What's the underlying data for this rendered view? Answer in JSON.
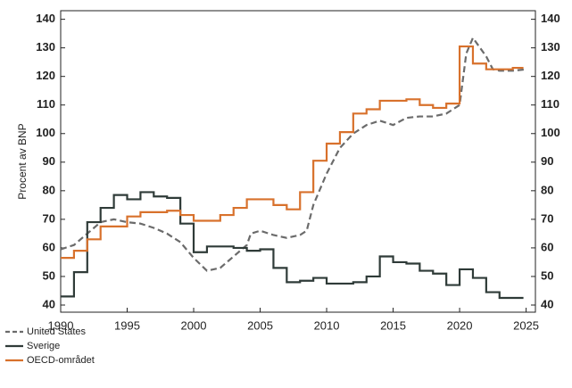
{
  "chart_data": {
    "type": "line",
    "y_label": "Procent av BNP",
    "xlim": [
      1990,
      2025.7
    ],
    "xticks": [
      1990,
      1995,
      2000,
      2005,
      2010,
      2015,
      2020,
      2025
    ],
    "ylim": [
      37.5,
      143
    ],
    "yticks": [
      40,
      50,
      60,
      70,
      80,
      90,
      100,
      110,
      120,
      130,
      140
    ],
    "right_axis_labels": true,
    "legend": "bottom-left",
    "series": [
      {
        "name": "United States",
        "color": "#6b6b6b",
        "dashed": true,
        "step": false,
        "x": [
          1990,
          1991,
          1992,
          1993,
          1994,
          1995,
          1996,
          1997,
          1998,
          1999,
          2000,
          2001,
          2002,
          2003,
          2004,
          2004.3,
          2005,
          2006,
          2007,
          2008,
          2008.5,
          2009,
          2010,
          2011,
          2012,
          2013,
          2014,
          2015,
          2016,
          2017,
          2018,
          2019,
          2020,
          2020.5,
          2021,
          2022,
          2022.5,
          2023,
          2024,
          2025
        ],
        "values": [
          59.5,
          61,
          65,
          69,
          70,
          69,
          68.5,
          67,
          65,
          62,
          56.5,
          52,
          53,
          57,
          61,
          65,
          66,
          64.5,
          63.5,
          64.5,
          66,
          75,
          86,
          95,
          100,
          103,
          104.5,
          103,
          105.5,
          106,
          106,
          107,
          110,
          128,
          133.5,
          127,
          122.5,
          122,
          122,
          122.5
        ]
      },
      {
        "name": "Sverige",
        "color": "#2f3b38",
        "dashed": false,
        "step": true,
        "x": [
          1990,
          1991,
          1992,
          1993,
          1994,
          1995,
          1996,
          1997,
          1998,
          1999,
          2000,
          2001,
          2002,
          2003,
          2004,
          2005,
          2006,
          2007,
          2008,
          2009,
          2010,
          2012,
          2013,
          2014,
          2015,
          2016,
          2017,
          2018,
          2019,
          2020,
          2021,
          2022,
          2023,
          2024,
          2024.8
        ],
        "values": [
          43,
          51.5,
          69,
          74,
          78.5,
          77,
          79.5,
          78,
          77.5,
          68.5,
          58.5,
          60.5,
          60.5,
          60,
          59,
          59.5,
          53,
          48,
          48.5,
          49.5,
          47.5,
          48,
          50,
          57,
          55,
          54.5,
          52,
          51,
          47,
          52.5,
          49.5,
          44.5,
          42.5,
          42.5,
          42.5
        ]
      },
      {
        "name": "OECD-området",
        "color": "#d8712c",
        "dashed": false,
        "step": true,
        "x": [
          1990,
          1991,
          1992,
          1993,
          1995,
          1996,
          1998,
          1999,
          2000,
          2002,
          2003,
          2004,
          2006,
          2007,
          2008,
          2009,
          2010,
          2011,
          2012,
          2013,
          2014,
          2016,
          2017,
          2018,
          2019,
          2020,
          2021,
          2022,
          2023,
          2024,
          2024.8
        ],
        "values": [
          56.5,
          59,
          63,
          67.5,
          71,
          72.5,
          73,
          71.5,
          69.5,
          71.5,
          74,
          77,
          75,
          73.5,
          79.5,
          90.5,
          96.5,
          100.5,
          107,
          108.5,
          111.5,
          112,
          110,
          109,
          110.5,
          130.5,
          124.5,
          122.5,
          122.5,
          123,
          123
        ]
      }
    ]
  }
}
